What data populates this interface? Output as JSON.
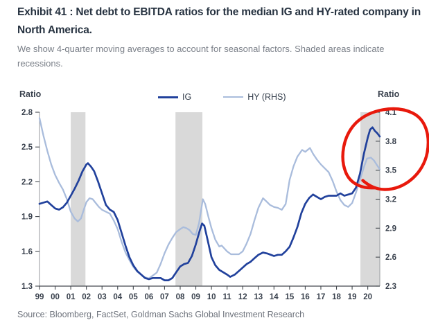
{
  "header": {
    "title": "Exhibit 41 : Net debt to EBITDA ratios for the median IG and HY-rated company in North America.",
    "subtitle": "We show 4-quarter moving averages to account for seasonal factors. Shaded areas indicate recessions."
  },
  "footer": {
    "source": "Source: Bloomberg, FactSet, Goldman Sachs Global Investment Research"
  },
  "chart_data": {
    "type": "line",
    "title": "Net debt to EBITDA ratios for the median IG and HY-rated company in North America",
    "left_axis": {
      "label": "Ratio",
      "min": 1.3,
      "max": 2.8,
      "ticks": [
        2.8,
        2.5,
        2.2,
        1.9,
        1.6,
        1.3
      ]
    },
    "right_axis": {
      "label": "Ratio",
      "min": 2.3,
      "max": 4.1,
      "ticks": [
        4.1,
        3.8,
        3.5,
        3.2,
        2.9,
        2.6,
        2.3
      ]
    },
    "x_axis": {
      "min": 1999,
      "max": 2020.77,
      "tick_years": [
        1999,
        2000,
        2001,
        2002,
        2003,
        2004,
        2005,
        2006,
        2007,
        2008,
        2009,
        2010,
        2011,
        2012,
        2013,
        2014,
        2015,
        2016,
        2017,
        2018,
        2019,
        2020
      ],
      "labels": [
        "99",
        "00",
        "01",
        "02",
        "03",
        "04",
        "05",
        "06",
        "07",
        "08",
        "09",
        "10",
        "11",
        "12",
        "13",
        "14",
        "15",
        "16",
        "17",
        "18",
        "19",
        "20"
      ]
    },
    "recessions": [
      {
        "start": 2001.0,
        "end": 2001.94
      },
      {
        "start": 2007.7,
        "end": 2009.42
      },
      {
        "start": 2019.53,
        "end": 2020.77
      }
    ],
    "grid": "off",
    "legend_position": "top-center",
    "colors": {
      "recession_band": "#d9d9d9",
      "axis_line": "#a6a9ad",
      "baseline": "#43484e",
      "tick_label": "#39414d",
      "annotation_red": "#e8190c"
    },
    "series": [
      {
        "name": "IG",
        "axis": "left",
        "color": "#21419c",
        "width": 2.7,
        "points": [
          [
            1999.0,
            2.01
          ],
          [
            1999.25,
            2.02
          ],
          [
            1999.5,
            2.03
          ],
          [
            1999.75,
            2.0
          ],
          [
            2000.0,
            1.97
          ],
          [
            2000.25,
            1.96
          ],
          [
            2000.5,
            1.98
          ],
          [
            2000.75,
            2.02
          ],
          [
            2001.0,
            2.08
          ],
          [
            2001.25,
            2.14
          ],
          [
            2001.5,
            2.21
          ],
          [
            2001.75,
            2.29
          ],
          [
            2002.0,
            2.35
          ],
          [
            2002.1,
            2.36
          ],
          [
            2002.3,
            2.33
          ],
          [
            2002.5,
            2.29
          ],
          [
            2002.75,
            2.2
          ],
          [
            2003.0,
            2.1
          ],
          [
            2003.25,
            2.0
          ],
          [
            2003.5,
            1.96
          ],
          [
            2003.75,
            1.94
          ],
          [
            2004.0,
            1.87
          ],
          [
            2004.25,
            1.76
          ],
          [
            2004.5,
            1.65
          ],
          [
            2004.75,
            1.55
          ],
          [
            2005.0,
            1.48
          ],
          [
            2005.25,
            1.43
          ],
          [
            2005.5,
            1.4
          ],
          [
            2005.75,
            1.37
          ],
          [
            2006.0,
            1.36
          ],
          [
            2006.25,
            1.37
          ],
          [
            2006.5,
            1.37
          ],
          [
            2006.75,
            1.37
          ],
          [
            2007.0,
            1.35
          ],
          [
            2007.25,
            1.35
          ],
          [
            2007.5,
            1.37
          ],
          [
            2007.75,
            1.42
          ],
          [
            2008.0,
            1.47
          ],
          [
            2008.25,
            1.49
          ],
          [
            2008.5,
            1.5
          ],
          [
            2008.75,
            1.56
          ],
          [
            2009.0,
            1.66
          ],
          [
            2009.25,
            1.78
          ],
          [
            2009.4,
            1.84
          ],
          [
            2009.55,
            1.82
          ],
          [
            2009.75,
            1.7
          ],
          [
            2010.0,
            1.55
          ],
          [
            2010.25,
            1.48
          ],
          [
            2010.5,
            1.44
          ],
          [
            2010.75,
            1.42
          ],
          [
            2011.0,
            1.4
          ],
          [
            2011.2,
            1.38
          ],
          [
            2011.5,
            1.4
          ],
          [
            2011.75,
            1.43
          ],
          [
            2012.0,
            1.46
          ],
          [
            2012.25,
            1.49
          ],
          [
            2012.5,
            1.51
          ],
          [
            2012.75,
            1.54
          ],
          [
            2013.0,
            1.57
          ],
          [
            2013.3,
            1.59
          ],
          [
            2013.6,
            1.58
          ],
          [
            2013.8,
            1.57
          ],
          [
            2014.0,
            1.56
          ],
          [
            2014.25,
            1.57
          ],
          [
            2014.5,
            1.57
          ],
          [
            2014.75,
            1.6
          ],
          [
            2015.0,
            1.64
          ],
          [
            2015.25,
            1.72
          ],
          [
            2015.5,
            1.81
          ],
          [
            2015.75,
            1.93
          ],
          [
            2016.0,
            2.01
          ],
          [
            2016.25,
            2.06
          ],
          [
            2016.5,
            2.09
          ],
          [
            2016.75,
            2.07
          ],
          [
            2017.0,
            2.05
          ],
          [
            2017.25,
            2.07
          ],
          [
            2017.5,
            2.08
          ],
          [
            2017.75,
            2.08
          ],
          [
            2018.0,
            2.08
          ],
          [
            2018.25,
            2.1
          ],
          [
            2018.5,
            2.08
          ],
          [
            2018.75,
            2.09
          ],
          [
            2019.0,
            2.1
          ],
          [
            2019.25,
            2.15
          ],
          [
            2019.5,
            2.27
          ],
          [
            2019.75,
            2.44
          ],
          [
            2020.0,
            2.58
          ],
          [
            2020.15,
            2.65
          ],
          [
            2020.3,
            2.67
          ],
          [
            2020.45,
            2.64
          ],
          [
            2020.6,
            2.62
          ],
          [
            2020.77,
            2.59
          ]
        ]
      },
      {
        "name": "HY (RHS)",
        "axis": "right",
        "color": "#a9bcdc",
        "width": 2.3,
        "points": [
          [
            1999.0,
            4.04
          ],
          [
            1999.25,
            3.86
          ],
          [
            1999.5,
            3.7
          ],
          [
            1999.75,
            3.56
          ],
          [
            2000.0,
            3.45
          ],
          [
            2000.25,
            3.37
          ],
          [
            2000.5,
            3.3
          ],
          [
            2000.75,
            3.2
          ],
          [
            2001.0,
            3.07
          ],
          [
            2001.25,
            3.0
          ],
          [
            2001.45,
            2.97
          ],
          [
            2001.65,
            3.0
          ],
          [
            2001.85,
            3.1
          ],
          [
            2002.0,
            3.17
          ],
          [
            2002.2,
            3.21
          ],
          [
            2002.4,
            3.2
          ],
          [
            2002.6,
            3.16
          ],
          [
            2002.8,
            3.12
          ],
          [
            2003.0,
            3.09
          ],
          [
            2003.25,
            3.07
          ],
          [
            2003.5,
            3.05
          ],
          [
            2003.75,
            2.98
          ],
          [
            2004.0,
            2.89
          ],
          [
            2004.25,
            2.76
          ],
          [
            2004.5,
            2.65
          ],
          [
            2004.75,
            2.57
          ],
          [
            2005.0,
            2.5
          ],
          [
            2005.25,
            2.45
          ],
          [
            2005.5,
            2.42
          ],
          [
            2005.75,
            2.39
          ],
          [
            2006.0,
            2.38
          ],
          [
            2006.25,
            2.41
          ],
          [
            2006.5,
            2.44
          ],
          [
            2006.75,
            2.53
          ],
          [
            2007.0,
            2.64
          ],
          [
            2007.25,
            2.73
          ],
          [
            2007.5,
            2.8
          ],
          [
            2007.75,
            2.86
          ],
          [
            2008.0,
            2.89
          ],
          [
            2008.2,
            2.91
          ],
          [
            2008.4,
            2.9
          ],
          [
            2008.6,
            2.88
          ],
          [
            2008.8,
            2.84
          ],
          [
            2009.0,
            2.83
          ],
          [
            2009.2,
            2.95
          ],
          [
            2009.45,
            3.2
          ],
          [
            2009.6,
            3.15
          ],
          [
            2009.8,
            3.02
          ],
          [
            2010.0,
            2.9
          ],
          [
            2010.25,
            2.78
          ],
          [
            2010.5,
            2.71
          ],
          [
            2010.65,
            2.72
          ],
          [
            2011.0,
            2.66
          ],
          [
            2011.25,
            2.63
          ],
          [
            2011.5,
            2.63
          ],
          [
            2011.75,
            2.63
          ],
          [
            2012.0,
            2.66
          ],
          [
            2012.25,
            2.74
          ],
          [
            2012.5,
            2.84
          ],
          [
            2012.75,
            2.98
          ],
          [
            2013.0,
            3.11
          ],
          [
            2013.3,
            3.21
          ],
          [
            2013.5,
            3.18
          ],
          [
            2013.75,
            3.14
          ],
          [
            2014.0,
            3.12
          ],
          [
            2014.25,
            3.11
          ],
          [
            2014.5,
            3.09
          ],
          [
            2014.75,
            3.15
          ],
          [
            2015.0,
            3.4
          ],
          [
            2015.25,
            3.54
          ],
          [
            2015.5,
            3.64
          ],
          [
            2015.8,
            3.71
          ],
          [
            2016.0,
            3.69
          ],
          [
            2016.3,
            3.73
          ],
          [
            2016.5,
            3.67
          ],
          [
            2016.75,
            3.61
          ],
          [
            2017.0,
            3.56
          ],
          [
            2017.25,
            3.52
          ],
          [
            2017.5,
            3.48
          ],
          [
            2017.75,
            3.39
          ],
          [
            2018.0,
            3.28
          ],
          [
            2018.25,
            3.19
          ],
          [
            2018.5,
            3.14
          ],
          [
            2018.75,
            3.12
          ],
          [
            2019.0,
            3.16
          ],
          [
            2019.25,
            3.27
          ],
          [
            2019.5,
            3.4
          ],
          [
            2019.75,
            3.53
          ],
          [
            2019.95,
            3.62
          ],
          [
            2020.2,
            3.63
          ],
          [
            2020.4,
            3.6
          ],
          [
            2020.6,
            3.55
          ],
          [
            2020.77,
            3.51
          ]
        ]
      }
    ],
    "annotation": {
      "type": "hand-drawn-circle",
      "target": "2020 spike in IG and HY ratios",
      "color": "#e8190c"
    }
  }
}
